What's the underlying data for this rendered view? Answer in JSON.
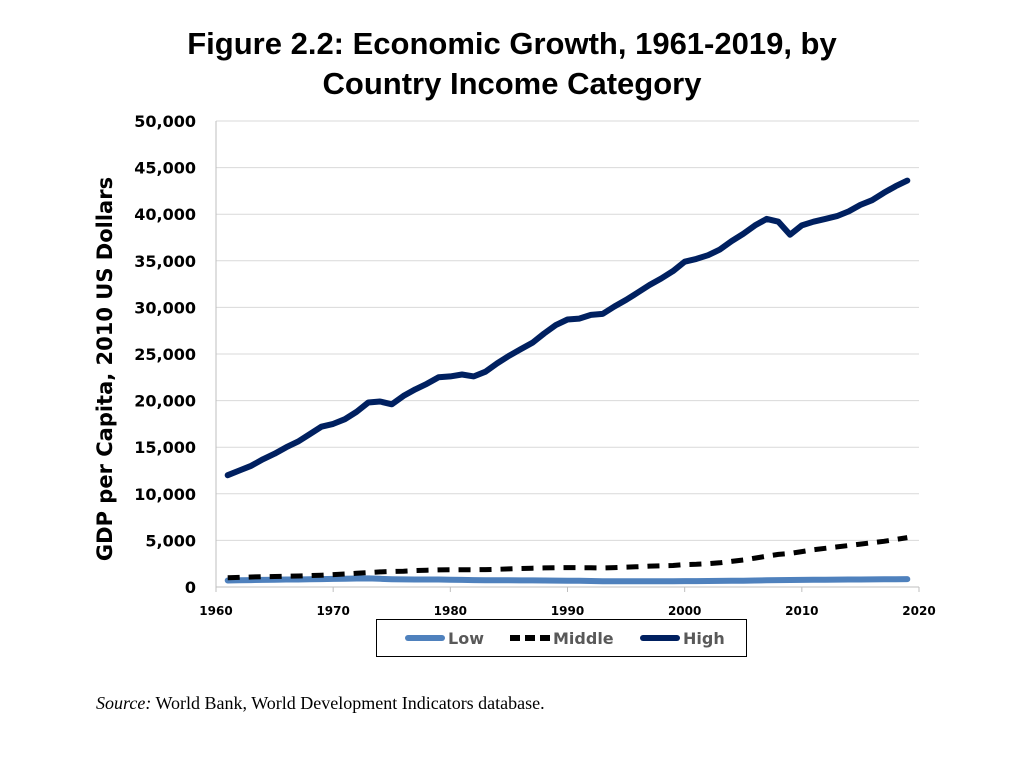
{
  "chart_data": {
    "type": "line",
    "title_lines": [
      "Figure 2.2: Economic Growth, 1961-2019, by",
      "Country Income Category"
    ],
    "xlabel": "",
    "ylabel": "GDP per Capita, 2010 US Dollars",
    "xlim": [
      1960,
      2020
    ],
    "ylim": [
      0,
      50000
    ],
    "xticks": [
      1960,
      1970,
      1980,
      1990,
      2000,
      2010,
      2020
    ],
    "yticks": [
      0,
      5000,
      10000,
      15000,
      20000,
      25000,
      30000,
      35000,
      40000,
      45000,
      50000
    ],
    "ytick_labels": [
      "0",
      "5,000",
      "10,000",
      "15,000",
      "20,000",
      "25,000",
      "30,000",
      "35,000",
      "40,000",
      "45,000",
      "50,000"
    ],
    "grid": true,
    "legend_position": "bottom",
    "x": [
      1961,
      1962,
      1963,
      1964,
      1965,
      1966,
      1967,
      1968,
      1969,
      1970,
      1971,
      1972,
      1973,
      1974,
      1975,
      1976,
      1977,
      1978,
      1979,
      1980,
      1981,
      1982,
      1983,
      1984,
      1985,
      1986,
      1987,
      1988,
      1989,
      1990,
      1991,
      1992,
      1993,
      1994,
      1995,
      1996,
      1997,
      1998,
      1999,
      2000,
      2001,
      2002,
      2003,
      2004,
      2005,
      2006,
      2007,
      2008,
      2009,
      2010,
      2011,
      2012,
      2013,
      2014,
      2015,
      2016,
      2017,
      2018,
      2019
    ],
    "series": [
      {
        "name": "Low",
        "color": "#4F81BD",
        "style": "solid",
        "values": [
          700,
          720,
          740,
          760,
          780,
          800,
          810,
          830,
          850,
          870,
          890,
          910,
          920,
          880,
          840,
          820,
          810,
          810,
          800,
          780,
          760,
          740,
          730,
          720,
          715,
          710,
          705,
          700,
          690,
          680,
          660,
          640,
          620,
          610,
          610,
          615,
          620,
          620,
          625,
          630,
          635,
          640,
          650,
          660,
          680,
          700,
          720,
          740,
          750,
          760,
          770,
          780,
          790,
          800,
          810,
          820,
          830,
          840,
          850
        ]
      },
      {
        "name": "Middle",
        "color": "#000000",
        "style": "dashed",
        "values": [
          1000,
          1030,
          1070,
          1100,
          1130,
          1160,
          1180,
          1220,
          1270,
          1330,
          1400,
          1470,
          1550,
          1620,
          1660,
          1700,
          1760,
          1800,
          1840,
          1850,
          1860,
          1860,
          1870,
          1900,
          1940,
          1980,
          2020,
          2050,
          2070,
          2080,
          2070,
          2060,
          2050,
          2080,
          2130,
          2180,
          2240,
          2270,
          2310,
          2400,
          2440,
          2500,
          2600,
          2750,
          2900,
          3100,
          3300,
          3500,
          3600,
          3800,
          4000,
          4150,
          4300,
          4450,
          4600,
          4750,
          4900,
          5100,
          5300
        ]
      },
      {
        "name": "High",
        "color": "#002060",
        "style": "solid",
        "values": [
          12000,
          12500,
          13000,
          13700,
          14300,
          15000,
          15600,
          16400,
          17200,
          17500,
          18000,
          18800,
          19800,
          19900,
          19600,
          20500,
          21200,
          21800,
          22500,
          22600,
          22800,
          22600,
          23100,
          24000,
          24800,
          25500,
          26200,
          27200,
          28100,
          28700,
          28800,
          29200,
          29300,
          30100,
          30800,
          31600,
          32400,
          33100,
          33900,
          34900,
          35200,
          35600,
          36200,
          37100,
          37900,
          38800,
          39500,
          39200,
          37800,
          38800,
          39200,
          39500,
          39800,
          40300,
          41000,
          41500,
          42300,
          43000,
          43600
        ]
      }
    ]
  },
  "legend": {
    "items": [
      {
        "label": "Low",
        "color": "#4F81BD",
        "style": "solid"
      },
      {
        "label": "Middle",
        "color": "#000000",
        "style": "dashed"
      },
      {
        "label": "High",
        "color": "#002060",
        "style": "solid"
      }
    ]
  },
  "source": {
    "label": "Source:",
    "text": " World Bank, World Development Indicators database."
  }
}
